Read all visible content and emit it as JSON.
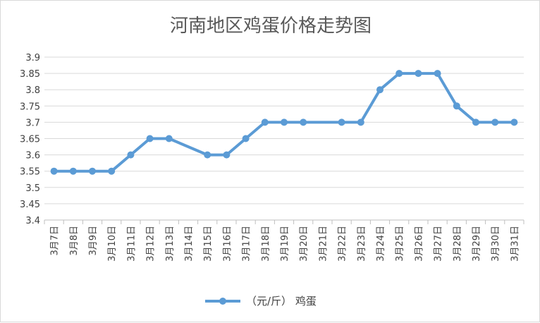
{
  "chart_data": {
    "type": "line",
    "title": "河南地区鸡蛋价格走势图",
    "categories": [
      "3月7日",
      "3月8日",
      "3月9日",
      "3月10日",
      "3月11日",
      "3月12日",
      "3月13日",
      "3月14日",
      "3月15日",
      "3月16日",
      "3月17日",
      "3月18日",
      "3月19日",
      "3月20日",
      "3月21日",
      "3月22日",
      "3月23日",
      "3月24日",
      "3月25日",
      "3月26日",
      "3月27日",
      "3月28日",
      "3月29日",
      "3月30日",
      "3月31日"
    ],
    "series": [
      {
        "name": "（元/斤） 鸡蛋",
        "values": [
          3.55,
          3.55,
          3.55,
          3.55,
          3.6,
          3.65,
          3.65,
          null,
          3.6,
          3.6,
          3.65,
          3.7,
          3.7,
          3.7,
          null,
          3.7,
          3.7,
          3.8,
          3.85,
          3.85,
          3.85,
          3.75,
          3.7,
          3.7,
          3.7
        ],
        "color": "#5b9bd5"
      }
    ],
    "yticks": [
      "3.9",
      "3.85",
      "3.8",
      "3.75",
      "3.7",
      "3.65",
      "3.6",
      "3.55",
      "3.5",
      "3.45",
      "3.4"
    ],
    "ylim": [
      3.4,
      3.9
    ],
    "grid": true,
    "legend": "bottom",
    "xlabel": "",
    "ylabel": ""
  }
}
